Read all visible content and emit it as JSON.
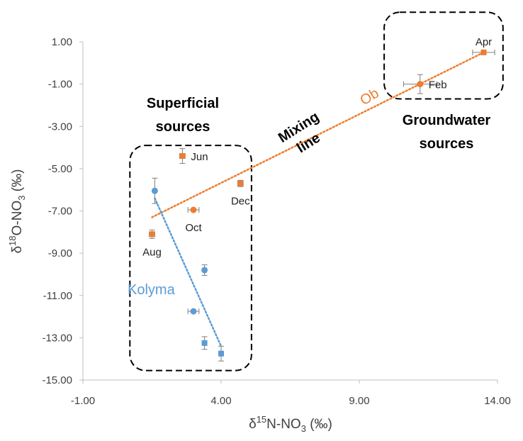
{
  "chart_data": {
    "type": "scatter",
    "xlabel": {
      "main": "δ",
      "sup": "15",
      "mid": "N-NO",
      "sub": "3",
      "tail": " (‰)"
    },
    "ylabel": {
      "main": "δ",
      "sup": "18",
      "mid": "O-NO",
      "sub": "3",
      "tail": " (‰)"
    },
    "xlim": [
      -1,
      14
    ],
    "ylim": [
      -15,
      1
    ],
    "xticks": [
      -1,
      4,
      9,
      14
    ],
    "xtick_labels": [
      "-1.00",
      "4.00",
      "9.00",
      "14.00"
    ],
    "yticks": [
      1,
      -1,
      -3,
      -5,
      -7,
      -9,
      -11,
      -13,
      -15
    ],
    "ytick_labels": [
      "1.00",
      "-1.00",
      "-3.00",
      "-5.00",
      "-7.00",
      "-9.00",
      "-11.00",
      "-13.00",
      "-15.00"
    ],
    "grid": false,
    "colors": {
      "ob": "#ED7D31",
      "kolyma": "#5B9BD5",
      "error": "#7f7f7f",
      "axis": "#bfbfbf"
    },
    "series": [
      {
        "name": "Ob",
        "color": "#ED7D31",
        "points": [
          {
            "x": 1.5,
            "y": -8.1,
            "xerr": 0.1,
            "yerr": 0.2,
            "marker": "square",
            "label": "Aug",
            "label_pos": "below"
          },
          {
            "x": 2.6,
            "y": -4.4,
            "xerr": 0.1,
            "yerr": 0.35,
            "marker": "square",
            "label": "Jun",
            "label_pos": "right"
          },
          {
            "x": 3.0,
            "y": -6.95,
            "xerr": 0.2,
            "yerr": 0.05,
            "marker": "circle",
            "label": "Oct",
            "label_pos": "below"
          },
          {
            "x": 4.7,
            "y": -5.7,
            "xerr": 0.1,
            "yerr": 0.15,
            "marker": "square",
            "label": "Dec",
            "label_pos": "below"
          },
          {
            "x": 11.2,
            "y": -1.0,
            "xerr": 0.6,
            "yerr": 0.45,
            "marker": "circle",
            "label": "Feb",
            "label_pos": "right"
          },
          {
            "x": 13.5,
            "y": 0.5,
            "xerr": 0.4,
            "yerr": 0.1,
            "marker": "square",
            "label": "Apr",
            "label_pos": "above"
          }
        ],
        "trendline": {
          "x0": 1.5,
          "y0": -7.3,
          "x1": 13.5,
          "y1": 0.5,
          "label": "Ob"
        }
      },
      {
        "name": "Kolyma",
        "color": "#5B9BD5",
        "points": [
          {
            "x": 1.6,
            "y": -6.05,
            "xerr": 0.05,
            "yerr": 0.6,
            "marker": "circle"
          },
          {
            "x": 3.4,
            "y": -9.8,
            "xerr": 0.05,
            "yerr": 0.25,
            "marker": "circle"
          },
          {
            "x": 3.0,
            "y": -11.75,
            "xerr": 0.2,
            "yerr": 0.05,
            "marker": "circle"
          },
          {
            "x": 3.4,
            "y": -13.25,
            "xerr": 0.05,
            "yerr": 0.3,
            "marker": "square"
          },
          {
            "x": 4.0,
            "y": -13.75,
            "xerr": 0.05,
            "yerr": 0.35,
            "marker": "square"
          }
        ],
        "trendline": {
          "x0": 1.6,
          "y0": -6.4,
          "x1": 4.0,
          "y1": -13.4,
          "label": "Kolyma"
        }
      }
    ],
    "annotations": {
      "superficial": [
        "Superficial",
        "sources"
      ],
      "groundwater": [
        "Groundwater",
        "sources"
      ],
      "mixing": [
        "Mixing",
        "line"
      ]
    },
    "boxes": [
      {
        "name": "superficial-box",
        "x0": 0.7,
        "x1": 5.1,
        "y0": -14.55,
        "y1": -3.9
      },
      {
        "name": "groundwater-box",
        "x0": 9.9,
        "x1": 14.2,
        "y0": -1.7,
        "y1": 2.4
      }
    ]
  }
}
